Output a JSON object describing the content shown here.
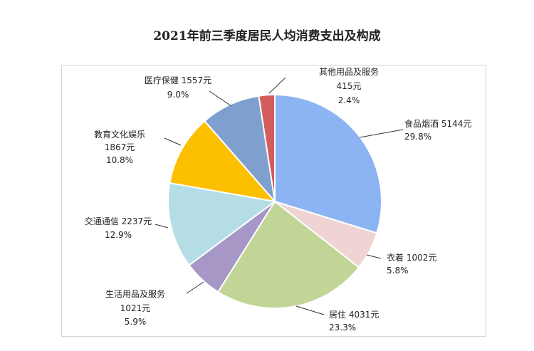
{
  "chart_data": {
    "type": "pie",
    "title": "2021年前三季度居民人均消费支出及构成",
    "slices": [
      {
        "name": "食品烟酒",
        "value": 5144,
        "unit": "元",
        "percent": "29.8%",
        "color": "#8cb4f2"
      },
      {
        "name": "衣着",
        "value": 1002,
        "unit": "元",
        "percent": "5.8%",
        "color": "#f0d4d4"
      },
      {
        "name": "居住",
        "value": 4031,
        "unit": "元",
        "percent": "23.3%",
        "color": "#c1d597"
      },
      {
        "name": "生活用品及服务",
        "value": 1021,
        "unit": "元",
        "percent": "5.9%",
        "color": "#a797c6"
      },
      {
        "name": "交通通信",
        "value": 2237,
        "unit": "元",
        "percent": "12.9%",
        "color": "#b5dde6"
      },
      {
        "name": "教育文化娱乐",
        "value": 1867,
        "unit": "元",
        "percent": "10.8%",
        "color": "#fdc001"
      },
      {
        "name": "医疗保健",
        "value": 1557,
        "unit": "元",
        "percent": "9.0%",
        "color": "#7f9fcf"
      },
      {
        "name": "其他用品及服务",
        "value": 415,
        "unit": "元",
        "percent": "2.4%",
        "color": "#d35c5c"
      }
    ]
  }
}
